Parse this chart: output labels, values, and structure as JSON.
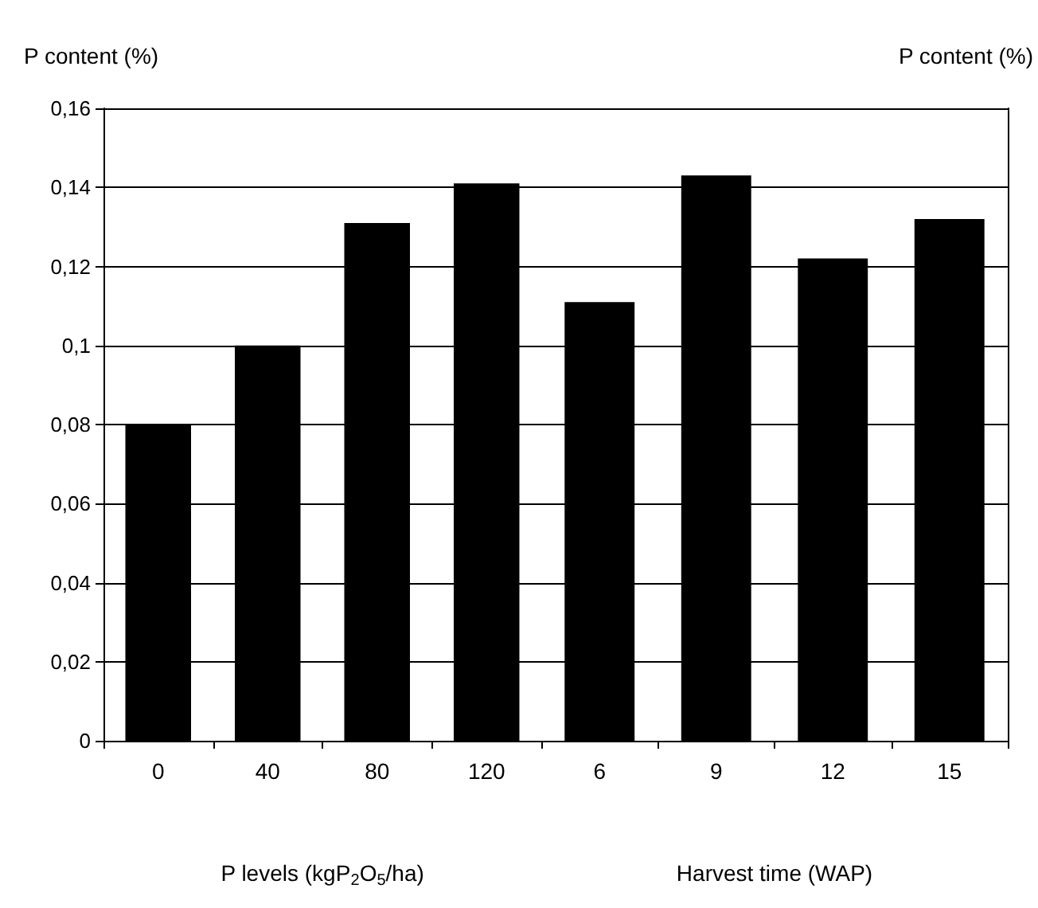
{
  "chart_data": [
    {
      "type": "bar",
      "ylabel": "P content (%)",
      "xlabel": "P levels (kgP$_{2}$O$_{5}$/ha)",
      "categories": [
        "0",
        "40",
        "80",
        "120"
      ],
      "values": [
        0.08,
        0.1,
        0.131,
        0.141
      ],
      "color": "#000000",
      "ylim": [
        0,
        0.16
      ],
      "yticks": [
        {
          "value": 0,
          "label": "0"
        },
        {
          "value": 0.02,
          "label": "0,02"
        },
        {
          "value": 0.04,
          "label": "0,04"
        },
        {
          "value": 0.06,
          "label": "0,06"
        },
        {
          "value": 0.08,
          "label": "0,08"
        },
        {
          "value": 0.1,
          "label": "0,1"
        },
        {
          "value": 0.12,
          "label": "0,12"
        },
        {
          "value": 0.14,
          "label": "0,14"
        },
        {
          "value": 0.16,
          "label": "0,16"
        }
      ],
      "grid": "y"
    },
    {
      "type": "bar",
      "ylabel": "P content (%)",
      "xlabel": "Harvest time (WAP)",
      "categories": [
        "6",
        "9",
        "12",
        "15"
      ],
      "values": [
        0.111,
        0.143,
        0.122,
        0.132
      ],
      "color": "#000000",
      "ylim": [
        0,
        0.16
      ],
      "yticks": [
        {
          "value": 0,
          "label": null
        },
        {
          "value": 0.02,
          "label": null
        },
        {
          "value": 0.04,
          "label": null
        },
        {
          "value": 0.06,
          "label": null
        },
        {
          "value": 0.08,
          "label": null
        },
        {
          "value": 0.1,
          "label": null
        },
        {
          "value": 0.12,
          "label": null
        },
        {
          "value": 0.14,
          "label": null
        },
        {
          "value": 0.16,
          "label": null
        }
      ],
      "grid": "y",
      "tick_labels": "x"
    }
  ]
}
